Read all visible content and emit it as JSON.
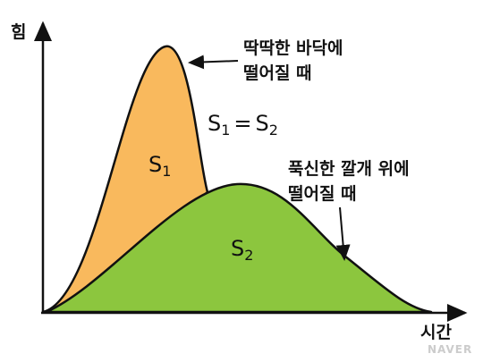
{
  "axes": {
    "y_label": "힘",
    "x_label": "시간"
  },
  "annotations": {
    "hard": {
      "line1": "딱딱한 바닥에",
      "line2": "떨어질 때"
    },
    "soft": {
      "line1": "푹신한 깔개 위에",
      "line2": "떨어질 때"
    },
    "equation": {
      "left": "S",
      "left_sub": "1",
      "sign": "=",
      "right": "S",
      "right_sub": "2"
    }
  },
  "areas": {
    "s1": {
      "letter": "S",
      "sub": "1"
    },
    "s2": {
      "letter": "S",
      "sub": "2"
    }
  },
  "watermark": "NAVER"
}
